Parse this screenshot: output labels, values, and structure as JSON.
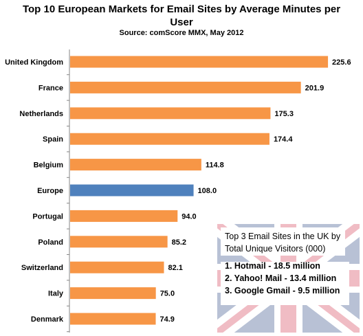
{
  "title_line1": "Top 10 European Markets for Email Sites by Average Minutes per",
  "title_line2": "User",
  "subtitle": "Source: comScore MMX, May 2012",
  "colors": {
    "bar": "#f79646",
    "highlight": "#4f81bd",
    "flag_blue": "#012169",
    "flag_red": "#c8102e"
  },
  "chart_data": {
    "type": "bar",
    "orientation": "horizontal",
    "categories": [
      "United Kingdom",
      "France",
      "Netherlands",
      "Spain",
      "Belgium",
      "Europe",
      "Portugal",
      "Poland",
      "Switzerland",
      "Italy",
      "Denmark"
    ],
    "values": [
      225.6,
      201.9,
      175.3,
      174.4,
      114.8,
      108.0,
      94.0,
      85.2,
      82.1,
      75.0,
      74.9
    ],
    "labels": [
      "225.6",
      "201.9",
      "175.3",
      "174.4",
      "114.8",
      "108.0",
      "94.0",
      "85.2",
      "82.1",
      "75.0",
      "74.9"
    ],
    "highlight_category": "Europe",
    "title": "Top 10 European Markets for Email Sites by Average Minutes per User",
    "subtitle": "Source: comScore MMX, May 2012",
    "xlim": [
      0,
      240
    ],
    "grid": false,
    "legend": "none"
  },
  "callout": {
    "title": "Top 3 Email Sites in the UK by Total Unique Visitors (000)",
    "items": [
      "1. Hotmail - 18.5 million",
      "2. Yahoo! Mail - 13.4 million",
      "3. Google Gmail - 9.5 million"
    ],
    "background": "uk-flag"
  }
}
